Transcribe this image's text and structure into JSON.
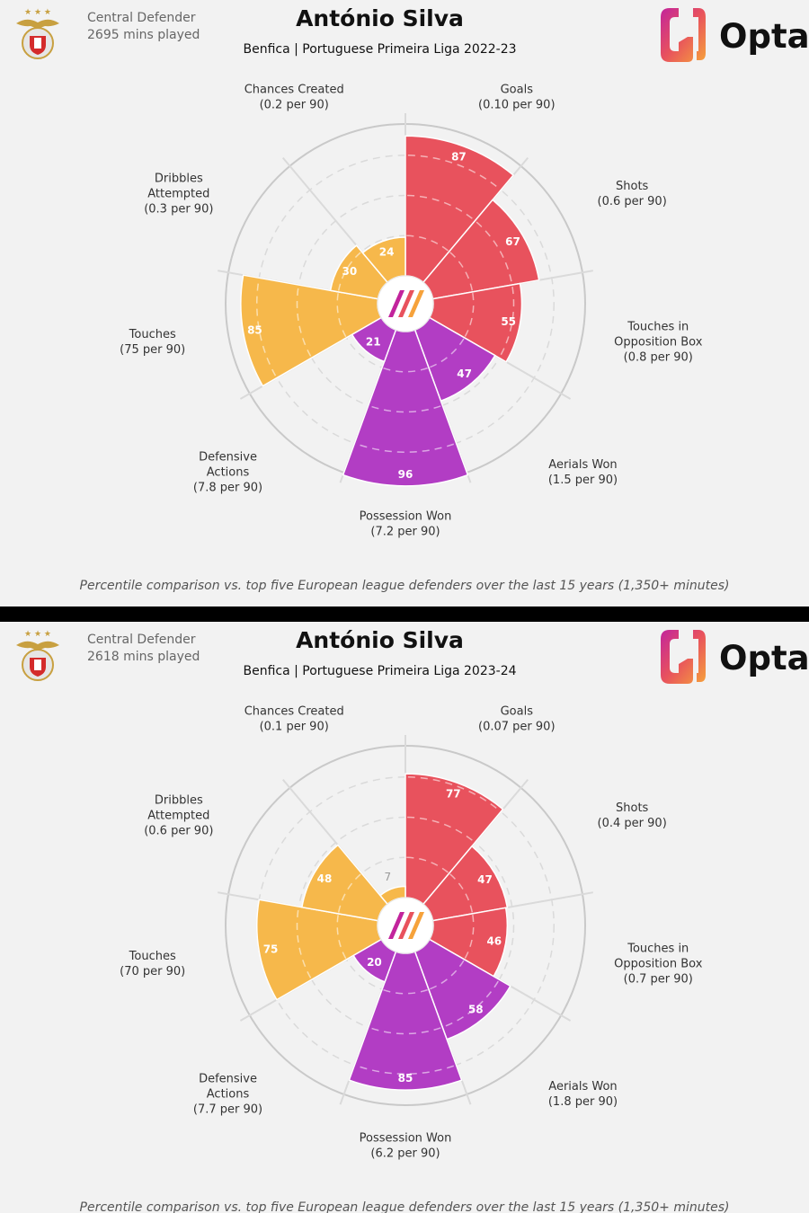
{
  "colors": {
    "attacking": "#e8525d",
    "defending": "#b23dc4",
    "possession": "#f6b84b",
    "background": "#f2f2f2"
  },
  "icons": {
    "crest": "benfica-crest-icon",
    "logo": "opta-logo-icon",
    "center": "opta-center-icon"
  },
  "logo_text": "Opta",
  "panels": [
    {
      "role": "Central Defender",
      "minutes": "2695 mins played",
      "player": "António Silva",
      "subtitle": "Benfica | Portuguese Primeira Liga 2022-23",
      "footnote": "Percentile comparison vs. top five European league defenders over the last 15 years (1,350+ minutes)"
    },
    {
      "role": "Central Defender",
      "minutes": "2618 mins played",
      "player": "António Silva",
      "subtitle": "Benfica | Portuguese Primeira Liga 2023-24",
      "footnote": "Percentile comparison vs. top five European league defenders over the last 15 years (1,350+ minutes)"
    }
  ],
  "chart_data": [
    {
      "type": "radar",
      "scale": [
        0,
        100
      ],
      "metrics": [
        {
          "label": [
            "Goals",
            "(0.10 per 90)"
          ],
          "percentile": 87,
          "group": "attacking"
        },
        {
          "label": [
            "Shots",
            "(0.6 per 90)"
          ],
          "percentile": 67,
          "group": "attacking"
        },
        {
          "label": [
            "Touches in",
            "Opposition Box",
            "(0.8 per 90)"
          ],
          "percentile": 55,
          "group": "attacking"
        },
        {
          "label": [
            "Aerials Won",
            "(1.5 per 90)"
          ],
          "percentile": 47,
          "group": "defending"
        },
        {
          "label": [
            "Possession Won",
            "(7.2 per 90)"
          ],
          "percentile": 96,
          "group": "defending"
        },
        {
          "label": [
            "Defensive",
            "Actions",
            "(7.8 per 90)"
          ],
          "percentile": 21,
          "group": "defending"
        },
        {
          "label": [
            "Touches",
            "(75 per 90)"
          ],
          "percentile": 85,
          "group": "possession"
        },
        {
          "label": [
            "Dribbles",
            "Attempted",
            "(0.3 per 90)"
          ],
          "percentile": 30,
          "group": "possession"
        },
        {
          "label": [
            "Chances Created",
            "(0.2 per 90)"
          ],
          "percentile": 24,
          "group": "possession"
        }
      ]
    },
    {
      "type": "radar",
      "scale": [
        0,
        100
      ],
      "metrics": [
        {
          "label": [
            "Goals",
            "(0.07 per 90)"
          ],
          "percentile": 77,
          "group": "attacking"
        },
        {
          "label": [
            "Shots",
            "(0.4 per 90)"
          ],
          "percentile": 47,
          "group": "attacking"
        },
        {
          "label": [
            "Touches in",
            "Opposition Box",
            "(0.7 per 90)"
          ],
          "percentile": 46,
          "group": "attacking"
        },
        {
          "label": [
            "Aerials Won",
            "(1.8 per 90)"
          ],
          "percentile": 58,
          "group": "defending"
        },
        {
          "label": [
            "Possession Won",
            "(6.2 per 90)"
          ],
          "percentile": 85,
          "group": "defending"
        },
        {
          "label": [
            "Defensive",
            "Actions",
            "(7.7 per 90)"
          ],
          "percentile": 20,
          "group": "defending"
        },
        {
          "label": [
            "Touches",
            "(70 per 90)"
          ],
          "percentile": 75,
          "group": "possession"
        },
        {
          "label": [
            "Dribbles",
            "Attempted",
            "(0.6 per 90)"
          ],
          "percentile": 48,
          "group": "possession"
        },
        {
          "label": [
            "Chances Created",
            "(0.1 per 90)"
          ],
          "percentile": 7,
          "group": "possession"
        }
      ]
    }
  ]
}
